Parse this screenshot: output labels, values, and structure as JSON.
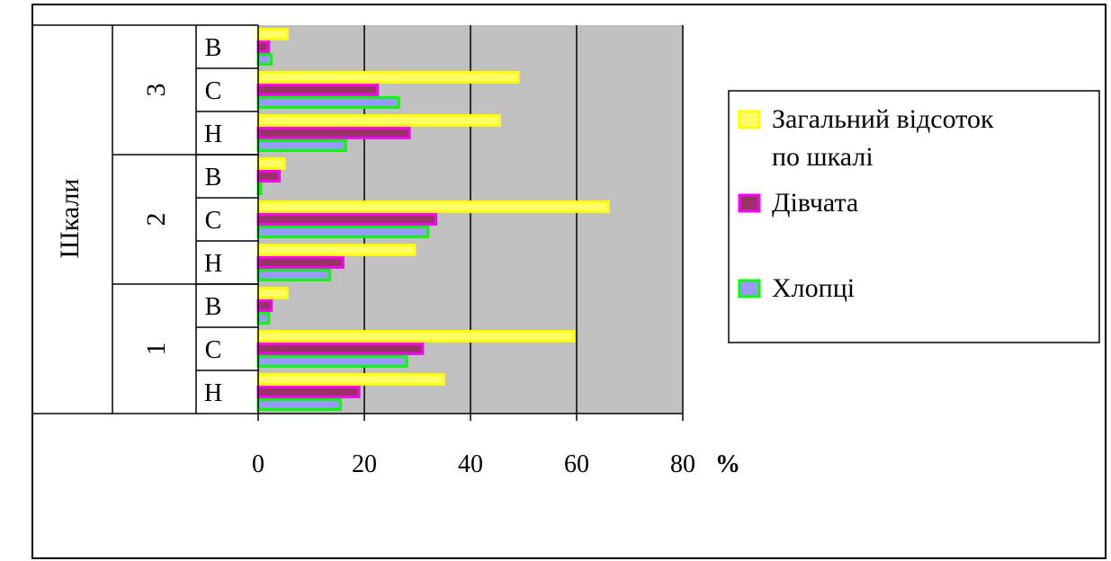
{
  "chart_data": {
    "type": "bar",
    "orientation": "horizontal",
    "ylabel": "Шкали",
    "xunit": "%",
    "xlim": [
      0,
      80
    ],
    "xticks": [
      0,
      20,
      40,
      60,
      80
    ],
    "grid": true,
    "legend_position": "right",
    "groups": [
      {
        "label": "3",
        "categories": [
          "В",
          "С",
          "Н"
        ]
      },
      {
        "label": "2",
        "categories": [
          "В",
          "С",
          "Н"
        ]
      },
      {
        "label": "1",
        "categories": [
          "В",
          "С",
          "Н"
        ]
      }
    ],
    "series": [
      {
        "name": "Загальний відсоток по шкалі",
        "legend_lines": [
          "Загальний відсоток",
          "по шкалі"
        ],
        "color": "#ffff66",
        "edge": "#ffff00",
        "values": [
          5.5,
          49,
          45.5,
          5,
          66,
          29.5,
          5.5,
          59.5,
          35
        ]
      },
      {
        "name": "Дівчата",
        "legend_lines": [
          "Дівчата"
        ],
        "color": "#993366",
        "edge": "#ff00ff",
        "values": [
          2,
          22.5,
          28.5,
          4,
          33.5,
          16,
          2.5,
          31,
          19
        ]
      },
      {
        "name": "Хлопці",
        "legend_lines": [
          "Хлопці"
        ],
        "color": "#9999ff",
        "edge": "#00ff00",
        "values": [
          2.5,
          26.5,
          16.5,
          0.5,
          32,
          13.5,
          2,
          28,
          15.5
        ]
      }
    ]
  }
}
